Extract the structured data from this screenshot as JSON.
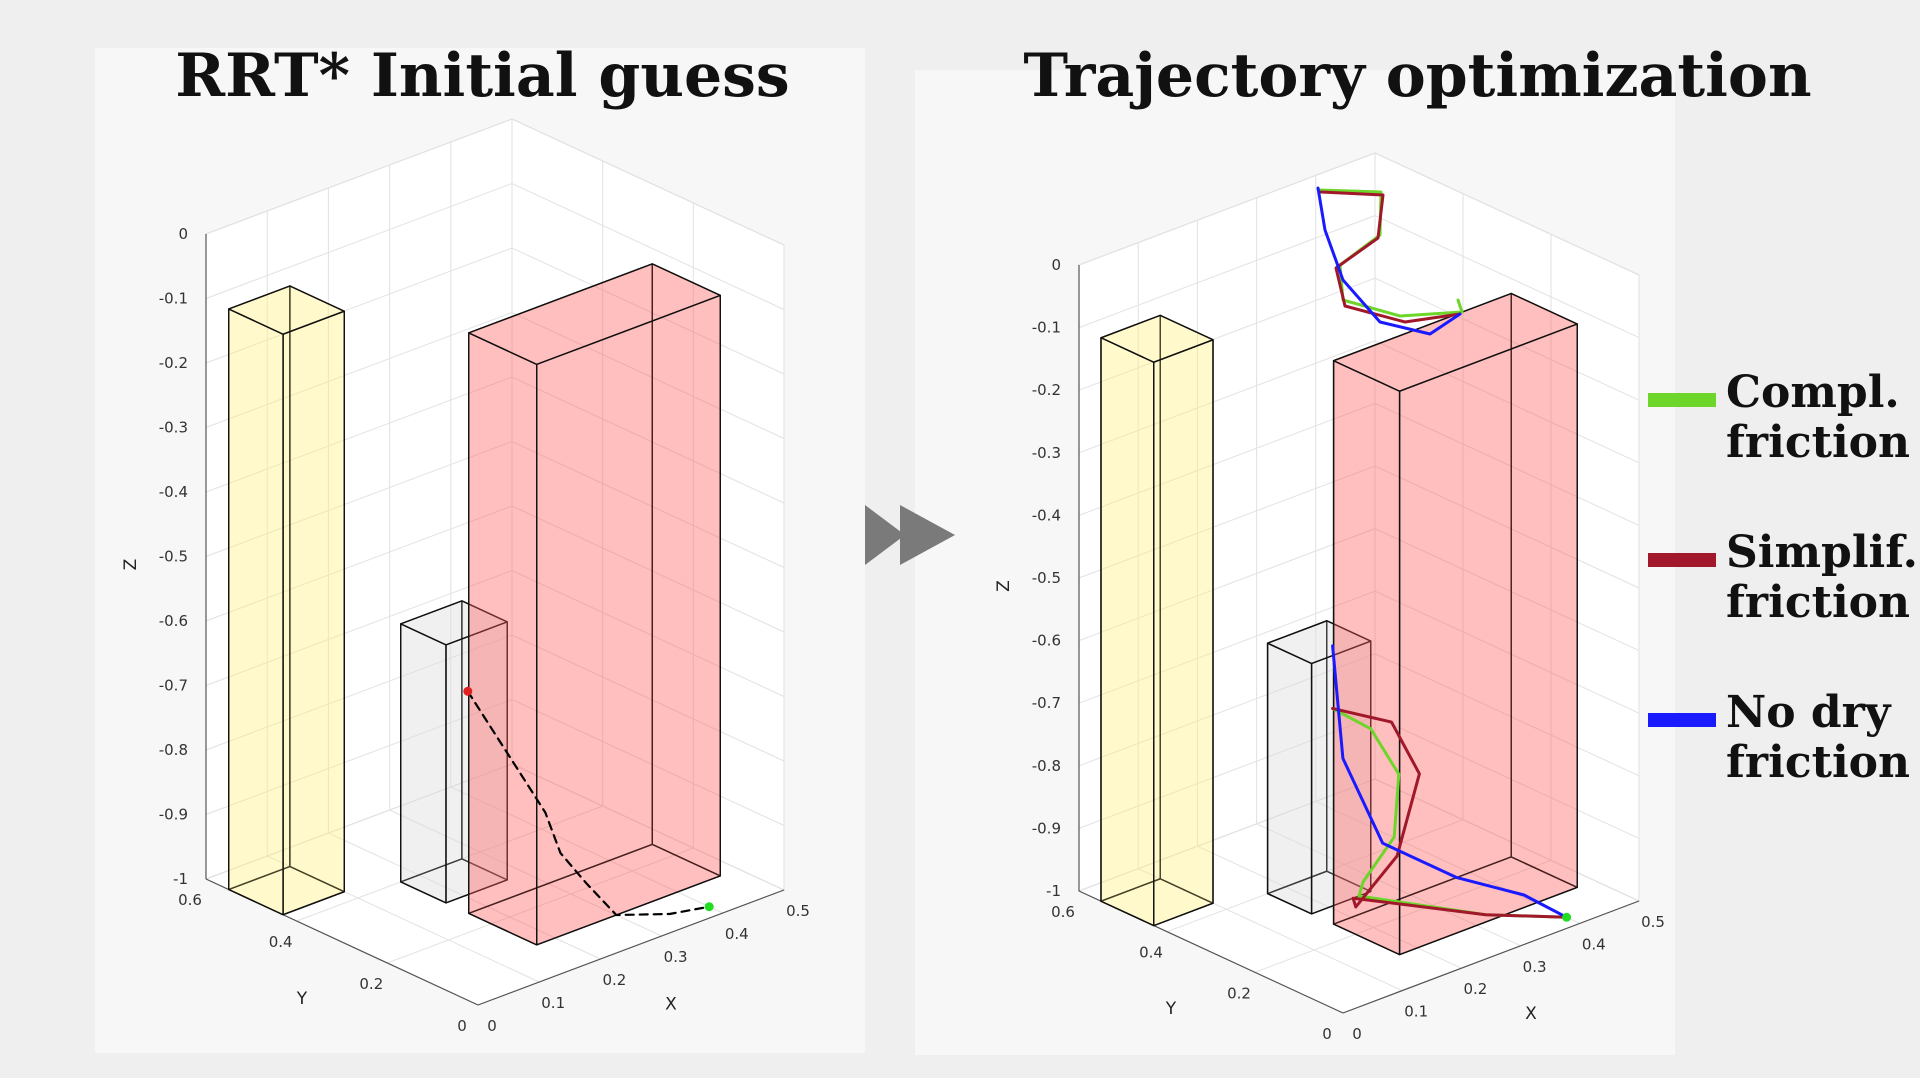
{
  "titles": {
    "left": "RRT* Initial guess",
    "right": "Trajectory optimization"
  },
  "axes_labels": {
    "x": "X",
    "y": "Y",
    "z": "Z"
  },
  "chart_data": [
    {
      "type": "3d-line",
      "title": "RRT* Initial guess",
      "xlabel": "X",
      "ylabel": "Y",
      "zlabel": "Z",
      "xlim": [
        0,
        0.5
      ],
      "ylim": [
        0,
        0.6
      ],
      "zlim": [
        -1,
        0
      ],
      "x_ticks": [
        "0",
        "0.1",
        "0.2",
        "0.3",
        "0.4",
        "0.5"
      ],
      "y_ticks": [
        "0",
        "0.2",
        "0.4",
        "0.6"
      ],
      "z_ticks": [
        "0",
        "-0.1",
        "-0.2",
        "-0.3",
        "-0.4",
        "-0.5",
        "-0.6",
        "-0.7",
        "-0.8",
        "-0.9",
        "-1"
      ],
      "grid": true,
      "obstacles": [
        {
          "color": "#fff27a",
          "x": [
            0.0,
            0.1
          ],
          "y": [
            0.43,
            0.55
          ],
          "z": [
            -1,
            -0.1
          ]
        },
        {
          "color": "#d9d9d9",
          "x": [
            0.17,
            0.27
          ],
          "y": [
            0.3,
            0.4
          ],
          "z": [
            -1,
            -0.6
          ]
        },
        {
          "color": "#ff5a5a",
          "x": [
            0.17,
            0.47
          ],
          "y": [
            0.1,
            0.25
          ],
          "z": [
            -1,
            -0.1
          ]
        }
      ],
      "series": [
        {
          "style": "dashed",
          "color": "#000000",
          "points": [
            [
              0.25,
              0.36,
              -0.72
            ],
            [
              0.27,
              0.33,
              -0.78
            ],
            [
              0.29,
              0.3,
              -0.84
            ],
            [
              0.31,
              0.27,
              -0.9
            ],
            [
              0.32,
              0.25,
              -0.96
            ],
            [
              0.31,
              0.18,
              -0.98
            ],
            [
              0.3,
              0.1,
              -1.0
            ],
            [
              0.35,
              0.05,
              -1.0
            ],
            [
              0.4,
              0.03,
              -1.0
            ]
          ]
        }
      ],
      "markers": [
        {
          "label": "start",
          "color": "#e02020",
          "point": [
            0.25,
            0.36,
            -0.72
          ]
        },
        {
          "label": "goal",
          "color": "#22dd22",
          "point": [
            0.4,
            0.03,
            -1.0
          ]
        }
      ]
    },
    {
      "type": "3d-line",
      "title": "Trajectory optimization",
      "xlabel": "X",
      "ylabel": "Y",
      "zlabel": "Z",
      "xlim": [
        0,
        0.5
      ],
      "ylim": [
        0,
        0.6
      ],
      "zlim": [
        -1,
        0
      ],
      "x_ticks": [
        "0",
        "0.1",
        "0.2",
        "0.3",
        "0.4",
        "0.5"
      ],
      "y_ticks": [
        "0",
        "0.2",
        "0.4",
        "0.6"
      ],
      "z_ticks": [
        "0",
        "-0.1",
        "-0.2",
        "-0.3",
        "-0.4",
        "-0.5",
        "-0.6",
        "-0.7",
        "-0.8",
        "-0.9",
        "-1"
      ],
      "grid": true,
      "obstacles": [
        {
          "color": "#fff27a",
          "x": [
            0.0,
            0.1
          ],
          "y": [
            0.43,
            0.55
          ],
          "z": [
            -1,
            -0.1
          ]
        },
        {
          "color": "#d9d9d9",
          "x": [
            0.17,
            0.27
          ],
          "y": [
            0.3,
            0.4
          ],
          "z": [
            -1,
            -0.6
          ]
        },
        {
          "color": "#ff5a5a",
          "x": [
            0.17,
            0.47
          ],
          "y": [
            0.1,
            0.25
          ],
          "z": [
            -1,
            -0.1
          ]
        }
      ],
      "series": [
        {
          "name": "Compl. friction",
          "color": "#6ed62a",
          "points": [
            [
              0.25,
              0.36,
              -0.72
            ],
            [
              0.27,
              0.3,
              -0.74
            ],
            [
              0.28,
              0.25,
              -0.8
            ],
            [
              0.25,
              0.22,
              -0.88
            ],
            [
              0.22,
              0.25,
              -0.95
            ],
            [
              0.25,
              0.3,
              -1.0
            ],
            [
              0.33,
              0.12,
              -1.0
            ],
            [
              0.4,
              0.03,
              -1.0
            ]
          ]
        },
        {
          "name": "Simplif. friction",
          "color": "#a0182a",
          "points": [
            [
              0.25,
              0.36,
              -0.72
            ],
            [
              0.29,
              0.28,
              -0.73
            ],
            [
              0.3,
              0.23,
              -0.8
            ],
            [
              0.24,
              0.2,
              -0.9
            ],
            [
              0.2,
              0.24,
              -0.98
            ],
            [
              0.24,
              0.3,
              -1.0
            ],
            [
              0.33,
              0.12,
              -1.0
            ],
            [
              0.4,
              0.03,
              -1.0
            ]
          ]
        },
        {
          "name": "No dry friction",
          "color": "#1a1aff",
          "points": [
            [
              0.25,
              0.36,
              -0.62
            ],
            [
              0.26,
              0.35,
              -0.8
            ],
            [
              0.29,
              0.3,
              -0.93
            ],
            [
              0.34,
              0.2,
              -0.97
            ],
            [
              0.38,
              0.1,
              -0.98
            ],
            [
              0.4,
              0.03,
              -1.0
            ]
          ]
        }
      ],
      "markers": [
        {
          "label": "goal",
          "color": "#22dd22",
          "point": [
            0.4,
            0.03,
            -1.0
          ]
        }
      ],
      "overshoot_coils": [
        {
          "name": "Compl. friction",
          "color": "#6ed62a"
        },
        {
          "name": "Simplif. friction",
          "color": "#a0182a"
        },
        {
          "name": "No dry friction",
          "color": "#1a1aff"
        }
      ],
      "legend": {
        "placement": "right",
        "entries": [
          {
            "name": "Compl. friction",
            "line1": "Compl.",
            "line2": "friction",
            "color": "#6ed62a"
          },
          {
            "name": "Simplif. friction",
            "line1": "Simplif.",
            "line2": "friction",
            "color": "#a0182a"
          },
          {
            "name": "No dry friction",
            "line1": "No dry",
            "line2": "friction",
            "color": "#1a1aff"
          }
        ]
      }
    }
  ]
}
